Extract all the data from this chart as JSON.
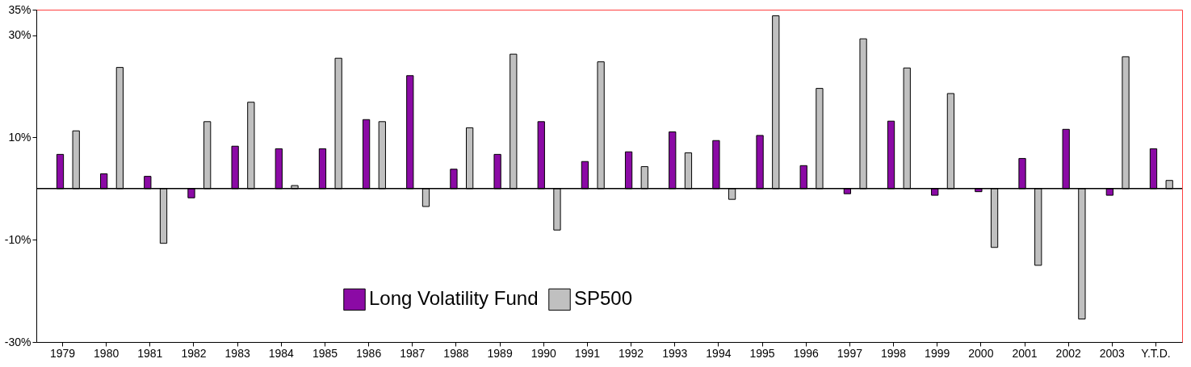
{
  "chart_data": {
    "type": "bar",
    "categories": [
      "1979",
      "1980",
      "1981",
      "1982",
      "1983",
      "1984",
      "1985",
      "1986",
      "1987",
      "1988",
      "1989",
      "1990",
      "1991",
      "1992",
      "1993",
      "1994",
      "1995",
      "1996",
      "1997",
      "1998",
      "1999",
      "2000",
      "2001",
      "2002",
      "2003",
      "Y.T.D."
    ],
    "series": [
      {
        "name": "Long Volatility Fund",
        "color": "#8b0aa5",
        "values": [
          6.7,
          2.9,
          2.4,
          -1.8,
          8.3,
          7.8,
          7.8,
          13.5,
          22.1,
          3.8,
          6.7,
          13.1,
          5.3,
          7.2,
          11.1,
          9.4,
          10.4,
          4.5,
          -1.0,
          13.2,
          -1.3,
          -0.6,
          5.9,
          11.6,
          -1.3,
          7.8
        ]
      },
      {
        "name": "SP500",
        "color": "#c0c0c0",
        "values": [
          11.3,
          23.7,
          -10.7,
          13.1,
          16.9,
          0.6,
          25.5,
          13.1,
          -3.5,
          11.9,
          26.3,
          -8.1,
          24.8,
          4.3,
          7.0,
          -2.1,
          33.8,
          19.6,
          29.3,
          23.6,
          18.6,
          -11.5,
          -15.0,
          -25.5,
          25.8,
          1.6
        ]
      }
    ],
    "ylim": [
      -30,
      35
    ],
    "yticks": [
      {
        "value": -30,
        "label": "-30%"
      },
      {
        "value": -10,
        "label": "-10%"
      },
      {
        "value": 10,
        "label": "10%"
      },
      {
        "value": 30,
        "label": "30%"
      },
      {
        "value": 35,
        "label": "35%"
      }
    ],
    "grid": false,
    "legend": "bottom"
  }
}
